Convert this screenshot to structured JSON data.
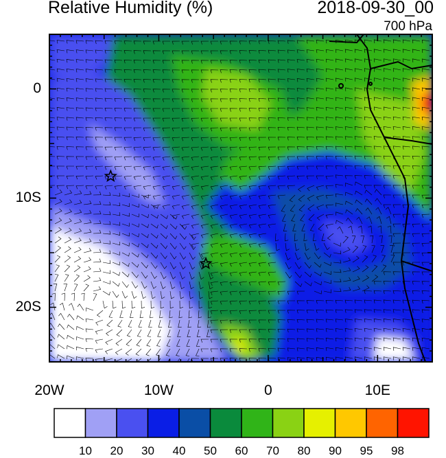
{
  "title_left": "Relative Humidity (%)",
  "title_right": "2018-09-30_00",
  "level": "700 hPa",
  "map": {
    "projection": "lat-lon",
    "lon_range": [
      -20,
      15
    ],
    "lat_range": [
      -25,
      5
    ],
    "x_ticks": [
      {
        "lon": -20,
        "label": "20W"
      },
      {
        "lon": -10,
        "label": "10W"
      },
      {
        "lon": 0,
        "label": "0"
      },
      {
        "lon": 10,
        "label": "10E"
      }
    ],
    "y_ticks": [
      {
        "lat": 0,
        "label": "0"
      },
      {
        "lat": -10,
        "label": "10S"
      },
      {
        "lat": -20,
        "label": "20S"
      }
    ],
    "stars": [
      {
        "name": "site-a-star",
        "lon": -14.4,
        "lat": -8.0
      },
      {
        "name": "site-b-star",
        "lon": -5.7,
        "lat": -16.0
      }
    ],
    "wind_barbs": true
  },
  "colorbar": {
    "labels": [
      "10",
      "20",
      "30",
      "40",
      "50",
      "60",
      "70",
      "80",
      "90",
      "95",
      "98"
    ],
    "colors": [
      "#ffffff",
      "#a0a0f5",
      "#4a50f0",
      "#0a1ee6",
      "#0a4ea6",
      "#0a8a3c",
      "#30b418",
      "#8ad214",
      "#e6f000",
      "#ffc800",
      "#ff6400",
      "#ff1400"
    ]
  }
}
